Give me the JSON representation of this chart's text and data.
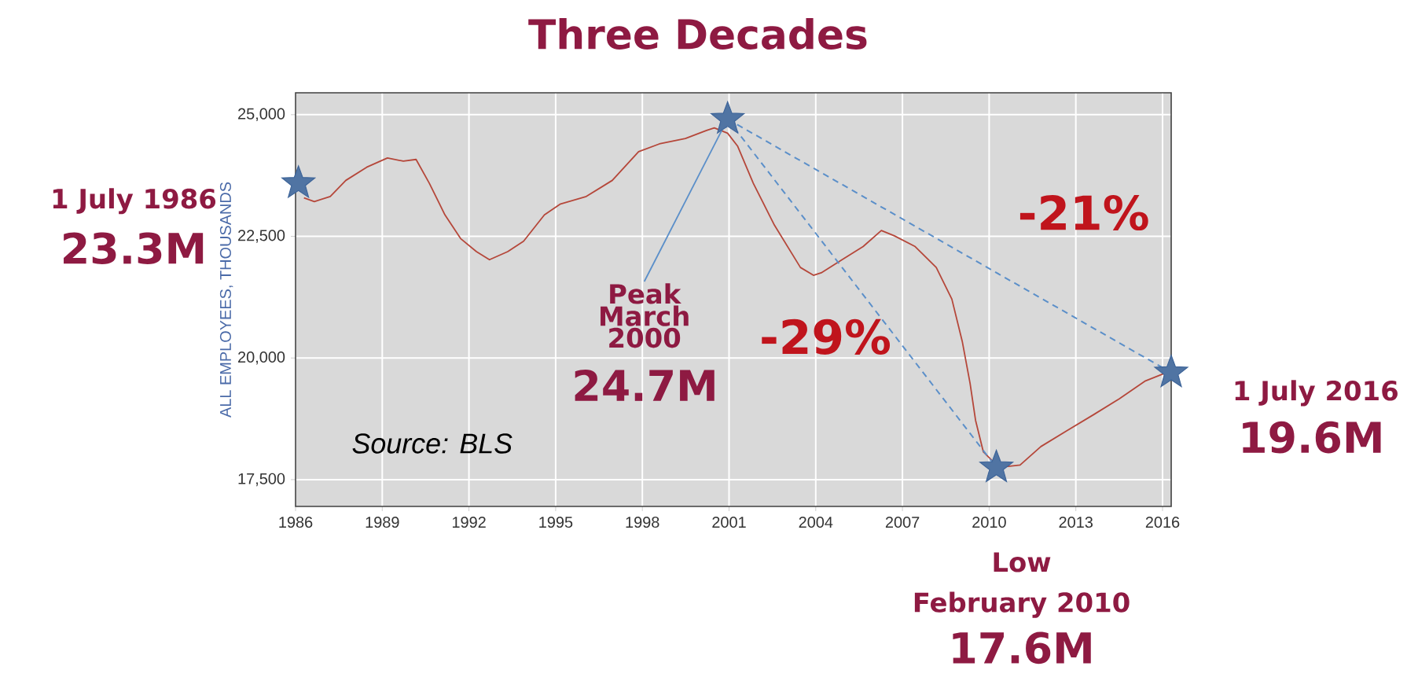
{
  "chart_data": {
    "type": "line",
    "title": "Three Decades",
    "ylabel": "ALL EMPLOYEES, THOUSANDS",
    "xlim": [
      1986,
      2016.3
    ],
    "ylim": [
      16950,
      25450
    ],
    "xticks": [
      1986,
      1989,
      1992,
      1995,
      1998,
      2001,
      2004,
      2007,
      2010,
      2013,
      2016
    ],
    "yticks": [
      {
        "value": 17500,
        "label": "17,500"
      },
      {
        "value": 20000,
        "label": "20,000"
      },
      {
        "value": 22500,
        "label": "22,500"
      },
      {
        "value": 25000,
        "label": "25,000"
      }
    ],
    "grid": true,
    "series": [
      {
        "type": "scatter",
        "color": "#3d6499",
        "marker": "star",
        "x": [
          1986.1,
          2000.95,
          2010.25,
          2016.3
        ],
        "values": [
          23590,
          24910,
          17750,
          19700
        ]
      },
      {
        "type": "line",
        "color": "#b5473a",
        "marker": "none",
        "line_style": "solid",
        "x": [
          1986.29,
          1986.65,
          1987.2,
          1987.74,
          1988.46,
          1989.18,
          1989.73,
          1990.17,
          1990.63,
          1991.17,
          1991.71,
          1992.26,
          1992.71,
          1993.34,
          1993.89,
          1994.61,
          1995.15,
          1996.06,
          1996.96,
          1997.87,
          1998.59,
          1999.49,
          2000.22,
          2000.49,
          2000.95,
          2001.3,
          2001.84,
          2002.57,
          2003.47,
          2003.92,
          2004.19,
          2004.91,
          2005.64,
          2006.27,
          2006.72,
          2007.44,
          2008.17,
          2008.71,
          2009.07,
          2009.34,
          2009.53,
          2009.8,
          2010.34,
          2011.07,
          2011.79,
          2012.7,
          2013.6,
          2014.5,
          2015.41,
          2016.13
        ],
        "values": [
          23290,
          23215,
          23320,
          23650,
          23920,
          24110,
          24045,
          24080,
          23590,
          22940,
          22455,
          22185,
          22020,
          22185,
          22400,
          22940,
          23160,
          23320,
          23650,
          24240,
          24400,
          24510,
          24675,
          24730,
          24620,
          24350,
          23590,
          22730,
          21860,
          21700,
          21750,
          22020,
          22290,
          22620,
          22510,
          22290,
          21860,
          21210,
          20340,
          19480,
          18720,
          18070,
          17750,
          17800,
          18180,
          18510,
          18830,
          19160,
          19530,
          19700
        ]
      },
      {
        "type": "line",
        "color": "#5b8fc9",
        "marker": "none",
        "line_style": "dashed",
        "x": [
          2000.95,
          2010.25
        ],
        "values": [
          24910,
          17750
        ]
      },
      {
        "type": "line",
        "color": "#5b8fc9",
        "marker": "none",
        "line_style": "dashed",
        "x": [
          2000.95,
          2016.3
        ],
        "values": [
          24910,
          19700
        ]
      }
    ],
    "annotations": [
      "1 July 1986",
      "23.3M",
      {
        "text": "Peak March 2000",
        "x": 2000.95,
        "y": 24910
      },
      "24.7M",
      "Low",
      "February 2010",
      "17.6M",
      "1 July 2016",
      "19.6M",
      "-29%",
      "-21%",
      "Source: BLS"
    ]
  }
}
